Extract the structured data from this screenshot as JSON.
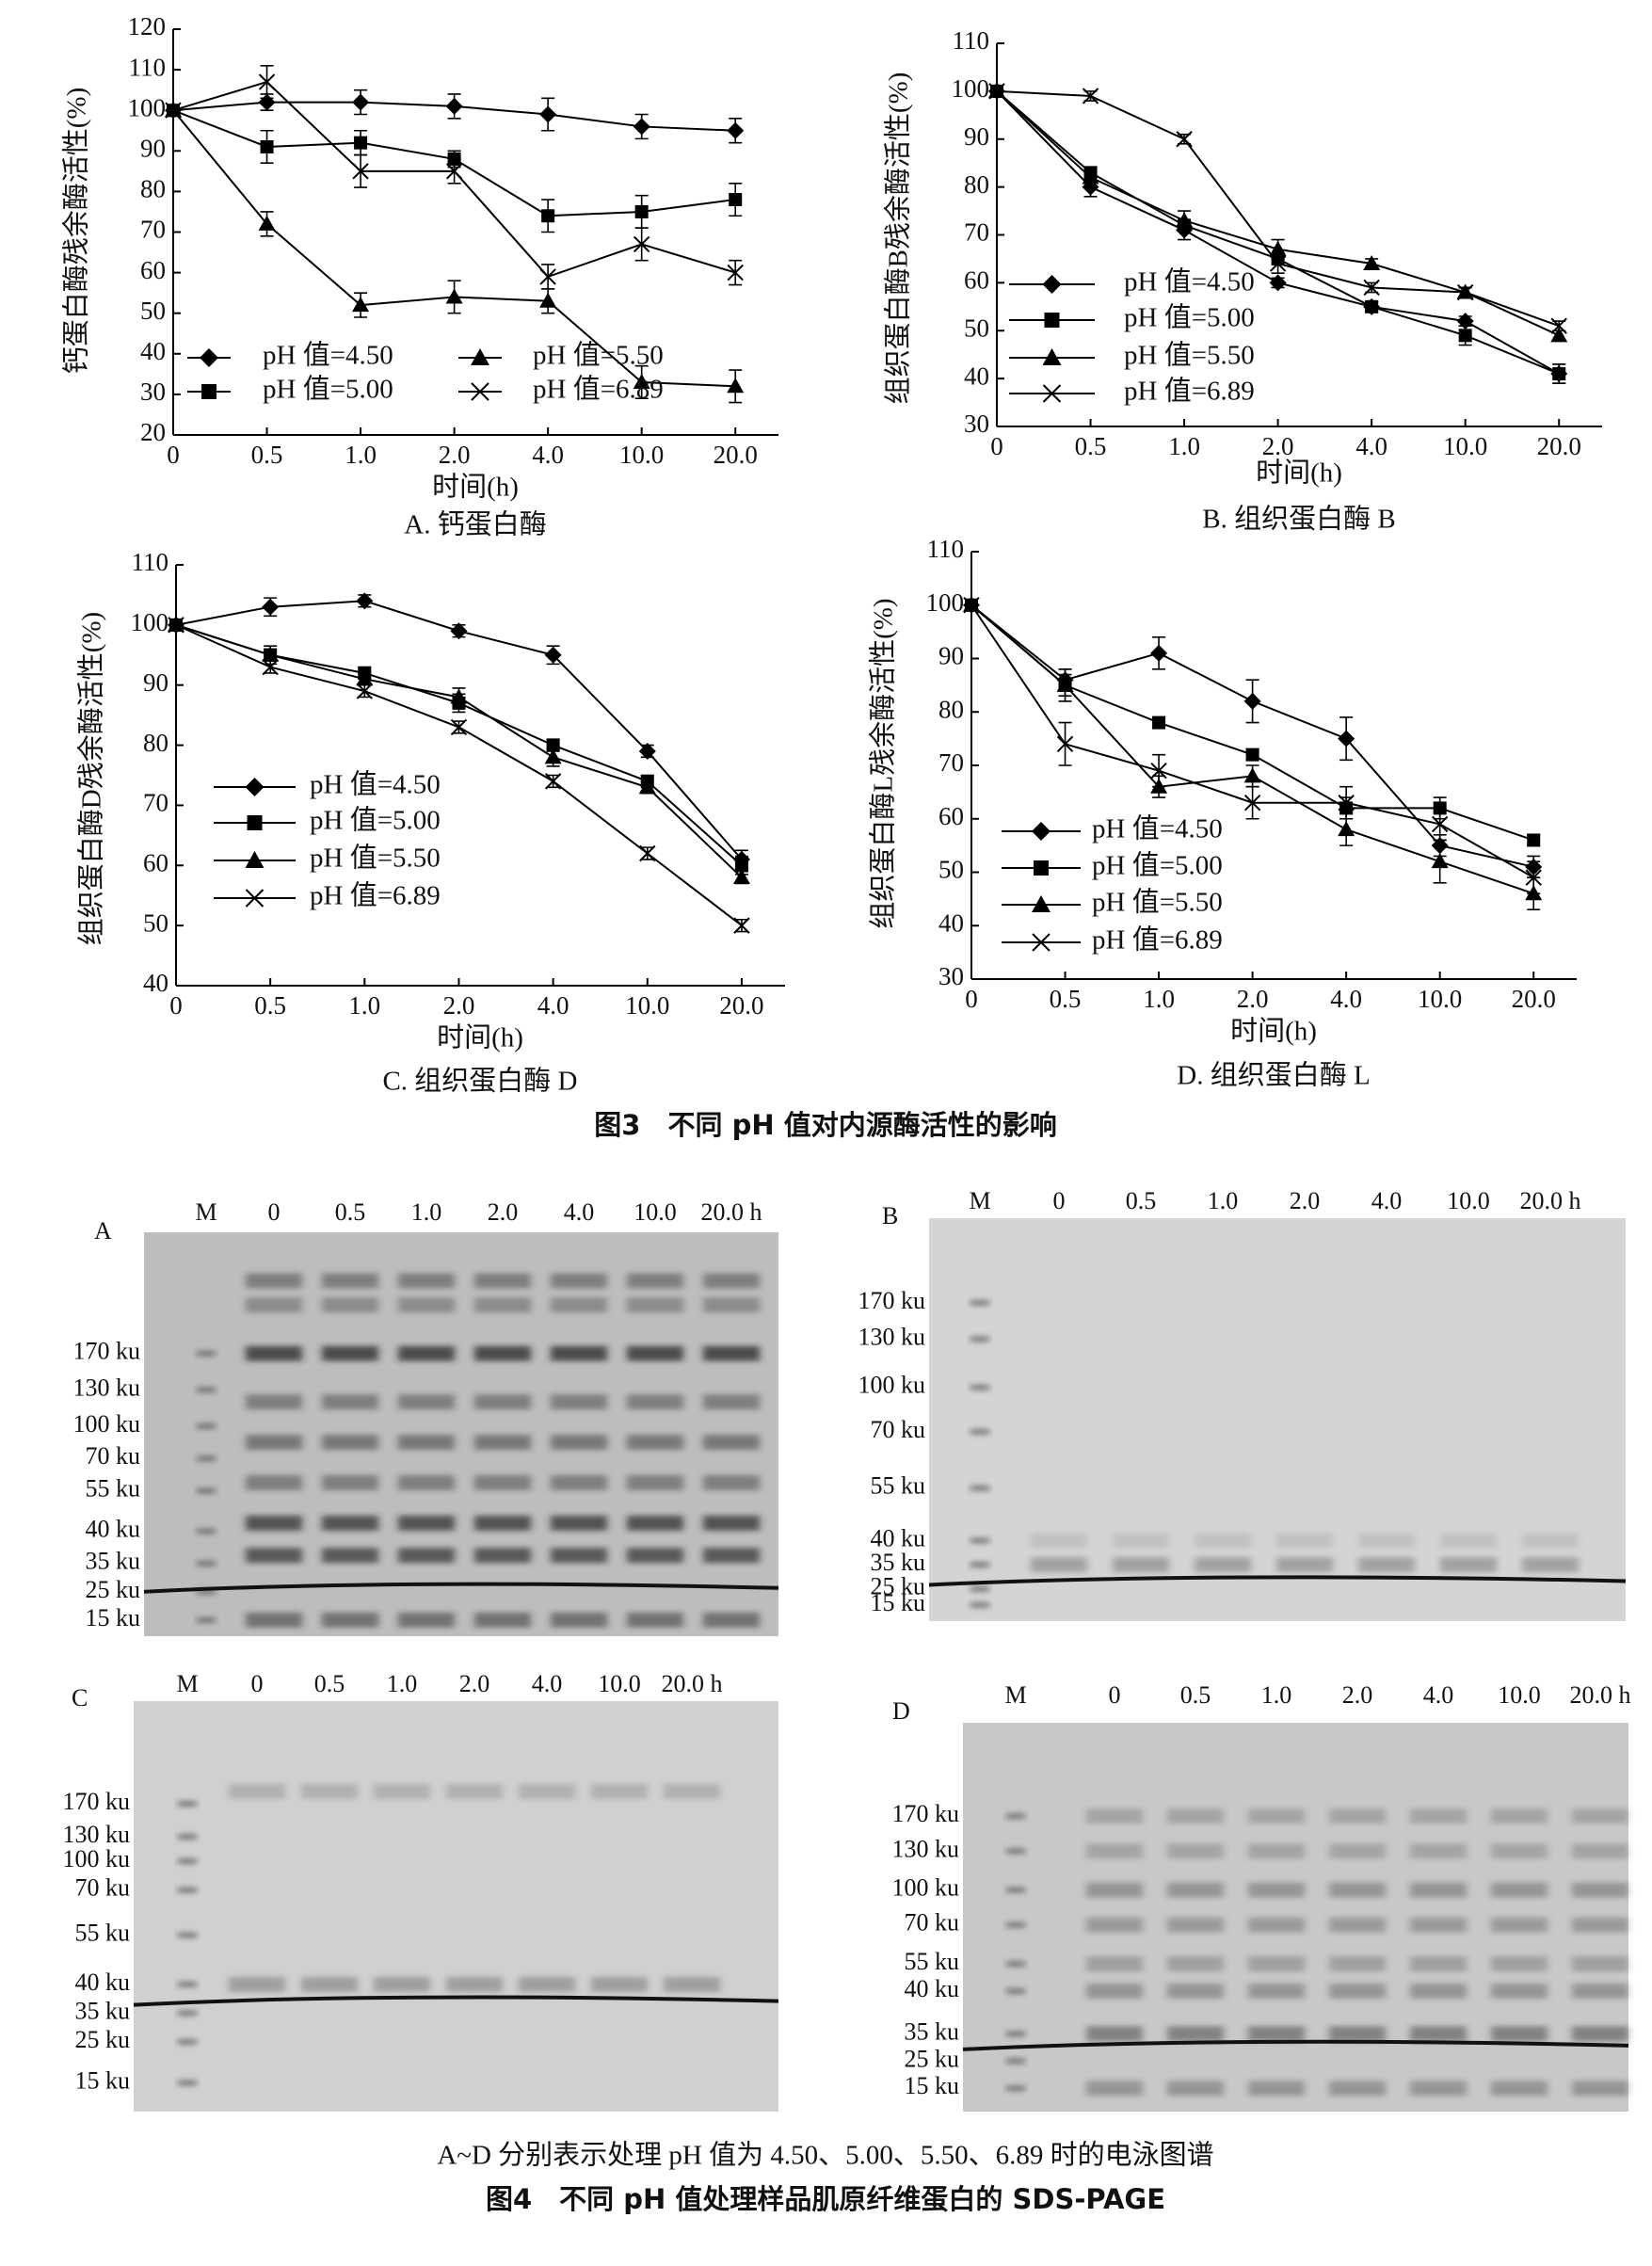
{
  "chart_data": [
    {
      "type": "line",
      "title": "A. 钙蛋白酶",
      "x_label": "时间(h)",
      "y_label": "钙蛋白酶残余酶活性(%)",
      "categories": [
        "0",
        "0.5",
        "1.0",
        "2.0",
        "4.0",
        "10.0",
        "20.0"
      ],
      "ylim": [
        20,
        120
      ],
      "yticks": [
        20,
        30,
        40,
        50,
        60,
        70,
        80,
        90,
        100,
        110,
        120
      ],
      "legend_columns": 2,
      "series": [
        {
          "name": "pH 值=4.50",
          "marker": "diamond",
          "color": "#000000",
          "values": [
            100,
            102,
            102,
            101,
            99,
            96,
            95
          ],
          "errors": [
            0,
            2,
            3,
            3,
            4,
            3,
            3
          ]
        },
        {
          "name": "pH 值=5.00",
          "marker": "square",
          "color": "#000000",
          "values": [
            100,
            91,
            92,
            88,
            74,
            75,
            78
          ],
          "errors": [
            0,
            4,
            3,
            2,
            4,
            4,
            4
          ]
        },
        {
          "name": "pH 值=5.50",
          "marker": "triangle",
          "color": "#000000",
          "values": [
            100,
            72,
            52,
            54,
            53,
            33,
            32
          ],
          "errors": [
            0,
            3,
            3,
            4,
            3,
            4,
            4
          ]
        },
        {
          "name": "pH 值=6.89",
          "marker": "x",
          "color": "#000000",
          "values": [
            100,
            107,
            85,
            85,
            59,
            67,
            60
          ],
          "errors": [
            0,
            4,
            4,
            3,
            3,
            4,
            3
          ]
        }
      ]
    },
    {
      "type": "line",
      "title": "B. 组织蛋白酶 B",
      "x_label": "时间(h)",
      "y_label": "组织蛋白酶B残余酶活性(%)",
      "categories": [
        "0",
        "0.5",
        "1.0",
        "2.0",
        "4.0",
        "10.0",
        "20.0"
      ],
      "ylim": [
        30,
        110
      ],
      "yticks": [
        30,
        40,
        50,
        60,
        70,
        80,
        90,
        100,
        110
      ],
      "legend_columns": 1,
      "series": [
        {
          "name": "pH 值=4.50",
          "marker": "diamond",
          "color": "#000000",
          "values": [
            100,
            80,
            71,
            60,
            55,
            52,
            41
          ],
          "errors": [
            0,
            2,
            2,
            1,
            1,
            1,
            2
          ]
        },
        {
          "name": "pH 值=5.00",
          "marker": "square",
          "color": "#000000",
          "values": [
            100,
            83,
            72,
            65,
            55,
            49,
            41
          ],
          "errors": [
            0,
            1,
            1,
            1,
            1,
            2,
            2
          ]
        },
        {
          "name": "pH 值=5.50",
          "marker": "triangle",
          "color": "#000000",
          "values": [
            100,
            82,
            73,
            67,
            64,
            58,
            49
          ],
          "errors": [
            0,
            1,
            2,
            2,
            1,
            1,
            1
          ]
        },
        {
          "name": "pH 值=6.89",
          "marker": "x",
          "color": "#000000",
          "values": [
            100,
            99,
            90,
            64,
            59,
            58,
            51
          ],
          "errors": [
            0,
            1,
            1,
            2,
            1,
            1,
            1
          ]
        }
      ]
    },
    {
      "type": "line",
      "title": "C. 组织蛋白酶 D",
      "x_label": "时间(h)",
      "y_label": "组织蛋白酶D残余酶活性(%)",
      "categories": [
        "0",
        "0.5",
        "1.0",
        "2.0",
        "4.0",
        "10.0",
        "20.0"
      ],
      "ylim": [
        40,
        110
      ],
      "yticks": [
        40,
        50,
        60,
        70,
        80,
        90,
        100,
        110
      ],
      "legend_columns": 1,
      "series": [
        {
          "name": "pH 值=4.50",
          "marker": "diamond",
          "color": "#000000",
          "values": [
            100,
            103,
            104,
            99,
            95,
            79,
            61
          ],
          "errors": [
            0,
            1.5,
            1,
            1,
            1.5,
            1,
            1.5
          ]
        },
        {
          "name": "pH 值=5.00",
          "marker": "square",
          "color": "#000000",
          "values": [
            100,
            95,
            92,
            87,
            80,
            74,
            60
          ],
          "errors": [
            0,
            1.5,
            1,
            1.5,
            1,
            1,
            1.5
          ]
        },
        {
          "name": "pH 值=5.50",
          "marker": "triangle",
          "color": "#000000",
          "values": [
            100,
            95,
            91,
            88,
            78,
            73,
            58
          ],
          "errors": [
            0,
            1,
            1,
            1.5,
            1.5,
            1,
            1
          ]
        },
        {
          "name": "pH 值=6.89",
          "marker": "x",
          "color": "#000000",
          "values": [
            100,
            93,
            89,
            83,
            74,
            62,
            50
          ],
          "errors": [
            0,
            1,
            1,
            1,
            1,
            1,
            1
          ]
        }
      ]
    },
    {
      "type": "line",
      "title": "D. 组织蛋白酶 L",
      "x_label": "时间(h)",
      "y_label": "组织蛋白酶L残余酶活性(%)",
      "categories": [
        "0",
        "0.5",
        "1.0",
        "2.0",
        "4.0",
        "10.0",
        "20.0"
      ],
      "ylim": [
        30,
        110
      ],
      "yticks": [
        30,
        40,
        50,
        60,
        70,
        80,
        90,
        100,
        110
      ],
      "legend_columns": 1,
      "series": [
        {
          "name": "pH 值=4.50",
          "marker": "diamond",
          "color": "#000000",
          "values": [
            100,
            86,
            91,
            82,
            75,
            55,
            51
          ],
          "errors": [
            0,
            2,
            3,
            4,
            4,
            2,
            2
          ]
        },
        {
          "name": "pH 值=5.00",
          "marker": "square",
          "color": "#000000",
          "values": [
            100,
            85,
            78,
            72,
            62,
            62,
            56
          ],
          "errors": [
            0,
            2,
            1,
            1,
            2,
            2,
            1
          ]
        },
        {
          "name": "pH 值=5.50",
          "marker": "triangle",
          "color": "#000000",
          "values": [
            100,
            85,
            66,
            68,
            58,
            52,
            46
          ],
          "errors": [
            0,
            3,
            2,
            2,
            3,
            4,
            3
          ]
        },
        {
          "name": "pH 值=6.89",
          "marker": "x",
          "color": "#000000",
          "values": [
            100,
            74,
            69,
            63,
            63,
            59,
            49
          ],
          "errors": [
            0,
            4,
            3,
            3,
            3,
            3,
            3
          ]
        }
      ]
    }
  ],
  "figure3_caption": "图3　不同 pH 值对内源酶活性的影响",
  "gels": [
    {
      "label": "A",
      "lanes": [
        "M",
        "0",
        "0.5",
        "1.0",
        "2.0",
        "4.0",
        "10.0",
        "20.0 h"
      ],
      "markers": [
        "170 ku",
        "130 ku",
        "100 ku",
        "70 ku",
        "55 ku",
        "40 ku",
        "35 ku",
        "25 ku",
        "15 ku"
      ]
    },
    {
      "label": "B",
      "lanes": [
        "M",
        "0",
        "0.5",
        "1.0",
        "2.0",
        "4.0",
        "10.0",
        "20.0 h"
      ],
      "markers": [
        "170 ku",
        "130 ku",
        "100 ku",
        "70 ku",
        "55 ku",
        "40 ku",
        "35 ku",
        "25 ku",
        "15 ku"
      ]
    },
    {
      "label": "C",
      "lanes": [
        "M",
        "0",
        "0.5",
        "1.0",
        "2.0",
        "4.0",
        "10.0",
        "20.0 h"
      ],
      "markers": [
        "170 ku",
        "130 ku",
        "100 ku",
        "70 ku",
        "55 ku",
        "40 ku",
        "35 ku",
        "25 ku",
        "15 ku"
      ]
    },
    {
      "label": "D",
      "lanes": [
        "M",
        "0",
        "0.5",
        "1.0",
        "2.0",
        "4.0",
        "10.0",
        "20.0 h"
      ],
      "markers": [
        "170 ku",
        "130 ku",
        "100 ku",
        "70 ku",
        "55 ku",
        "40 ku",
        "35 ku",
        "25 ku",
        "15 ku"
      ]
    }
  ],
  "figure4_note": "A~D 分别表示处理 pH 值为 4.50、5.00、5.50、6.89 时的电泳图谱",
  "figure4_caption": "图4　不同 pH 值处理样品肌原纤维蛋白的 SDS-PAGE"
}
